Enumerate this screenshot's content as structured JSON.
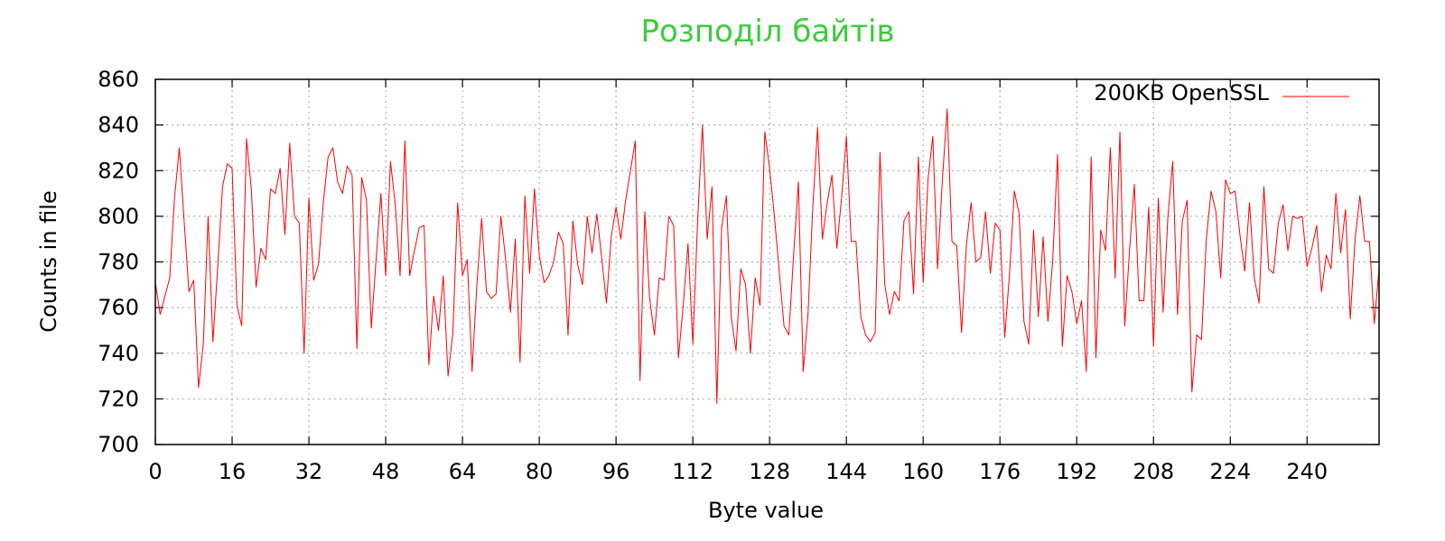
{
  "chart_data": {
    "type": "line",
    "title": "Розподіл байтів",
    "xlabel": "Byte value",
    "ylabel": "Counts in file",
    "xlim": [
      0,
      255
    ],
    "ylim": [
      700,
      860
    ],
    "xticks": [
      0,
      16,
      32,
      48,
      64,
      80,
      96,
      112,
      128,
      144,
      160,
      176,
      192,
      208,
      224,
      240
    ],
    "yticks": [
      700,
      720,
      740,
      760,
      780,
      800,
      820,
      840,
      860
    ],
    "grid": true,
    "legend_position": "top-right",
    "series": [
      {
        "name": "200KB OpenSSL",
        "color": "#ff0000",
        "x": [
          0,
          1,
          2,
          3,
          4,
          5,
          6,
          7,
          8,
          9,
          10,
          11,
          12,
          13,
          14,
          15,
          16,
          17,
          18,
          19,
          20,
          21,
          22,
          23,
          24,
          25,
          26,
          27,
          28,
          29,
          30,
          31,
          32,
          33,
          34,
          35,
          36,
          37,
          38,
          39,
          40,
          41,
          42,
          43,
          44,
          45,
          46,
          47,
          48,
          49,
          50,
          51,
          52,
          53,
          54,
          55,
          56,
          57,
          58,
          59,
          60,
          61,
          62,
          63,
          64,
          65,
          66,
          67,
          68,
          69,
          70,
          71,
          72,
          73,
          74,
          75,
          76,
          77,
          78,
          79,
          80,
          81,
          82,
          83,
          84,
          85,
          86,
          87,
          88,
          89,
          90,
          91,
          92,
          93,
          94,
          95,
          96,
          97,
          98,
          99,
          100,
          101,
          102,
          103,
          104,
          105,
          106,
          107,
          108,
          109,
          110,
          111,
          112,
          113,
          114,
          115,
          116,
          117,
          118,
          119,
          120,
          121,
          122,
          123,
          124,
          125,
          126,
          127,
          128,
          129,
          130,
          131,
          132,
          133,
          134,
          135,
          136,
          137,
          138,
          139,
          140,
          141,
          142,
          143,
          144,
          145,
          146,
          147,
          148,
          149,
          150,
          151,
          152,
          153,
          154,
          155,
          156,
          157,
          158,
          159,
          160,
          161,
          162,
          163,
          164,
          165,
          166,
          167,
          168,
          169,
          170,
          171,
          172,
          173,
          174,
          175,
          176,
          177,
          178,
          179,
          180,
          181,
          182,
          183,
          184,
          185,
          186,
          187,
          188,
          189,
          190,
          191,
          192,
          193,
          194,
          195,
          196,
          197,
          198,
          199,
          200,
          201,
          202,
          203,
          204,
          205,
          206,
          207,
          208,
          209,
          210,
          211,
          212,
          213,
          214,
          215,
          216,
          217,
          218,
          219,
          220,
          221,
          222,
          223,
          224,
          225,
          226,
          227,
          228,
          229,
          230,
          231,
          232,
          233,
          234,
          235,
          236,
          237,
          238,
          239,
          240,
          241,
          242,
          243,
          244,
          245,
          246,
          247,
          248,
          249,
          250,
          251,
          252,
          253,
          254,
          255
        ],
        "values": [
          771,
          757,
          765,
          773,
          808,
          830,
          798,
          767,
          772,
          725,
          744,
          800,
          745,
          778,
          813,
          823,
          821,
          761,
          752,
          834,
          812,
          769,
          786,
          781,
          812,
          810,
          821,
          792,
          832,
          800,
          797,
          740,
          808,
          772,
          779,
          806,
          826,
          830,
          815,
          810,
          822,
          818,
          742,
          817,
          807,
          751,
          781,
          810,
          774,
          824,
          805,
          774,
          833,
          774,
          785,
          795,
          796,
          735,
          765,
          750,
          774,
          730,
          749,
          806,
          774,
          781,
          732,
          770,
          799,
          767,
          764,
          766,
          800,
          781,
          758,
          790,
          736,
          809,
          775,
          812,
          783,
          771,
          774,
          780,
          793,
          788,
          748,
          798,
          779,
          770,
          800,
          784,
          801,
          782,
          762,
          791,
          804,
          790,
          807,
          820,
          833,
          728,
          802,
          764,
          748,
          773,
          772,
          800,
          796,
          738,
          761,
          788,
          744,
          798,
          840,
          790,
          813,
          718,
          795,
          809,
          756,
          741,
          777,
          770,
          740,
          773,
          761,
          837,
          821,
          800,
          776,
          752,
          748,
          783,
          815,
          732,
          757,
          804,
          839,
          790,
          806,
          818,
          786,
          808,
          835,
          789,
          789,
          756,
          748,
          745,
          749,
          828,
          770,
          757,
          767,
          763,
          798,
          802,
          766,
          826,
          771,
          816,
          835,
          777,
          816,
          847,
          789,
          787,
          749,
          787,
          806,
          780,
          782,
          802,
          775,
          797,
          794,
          747,
          775,
          811,
          801,
          754,
          744,
          794,
          756,
          791,
          754,
          781,
          827,
          743,
          774,
          767,
          753,
          763,
          732,
          826,
          738,
          794,
          785,
          830,
          773,
          837,
          752,
          785,
          814,
          763,
          763,
          804,
          743,
          808,
          758,
          800,
          824,
          757,
          798,
          807,
          723,
          748,
          746,
          790,
          811,
          802,
          773,
          816,
          810,
          811,
          792,
          776,
          806,
          773,
          762,
          813,
          777,
          775,
          797,
          805,
          785,
          800,
          799,
          800,
          778,
          786,
          796,
          767,
          783,
          777,
          810,
          784,
          803,
          755,
          790,
          809,
          789,
          789,
          753,
          777
        ]
      }
    ]
  }
}
